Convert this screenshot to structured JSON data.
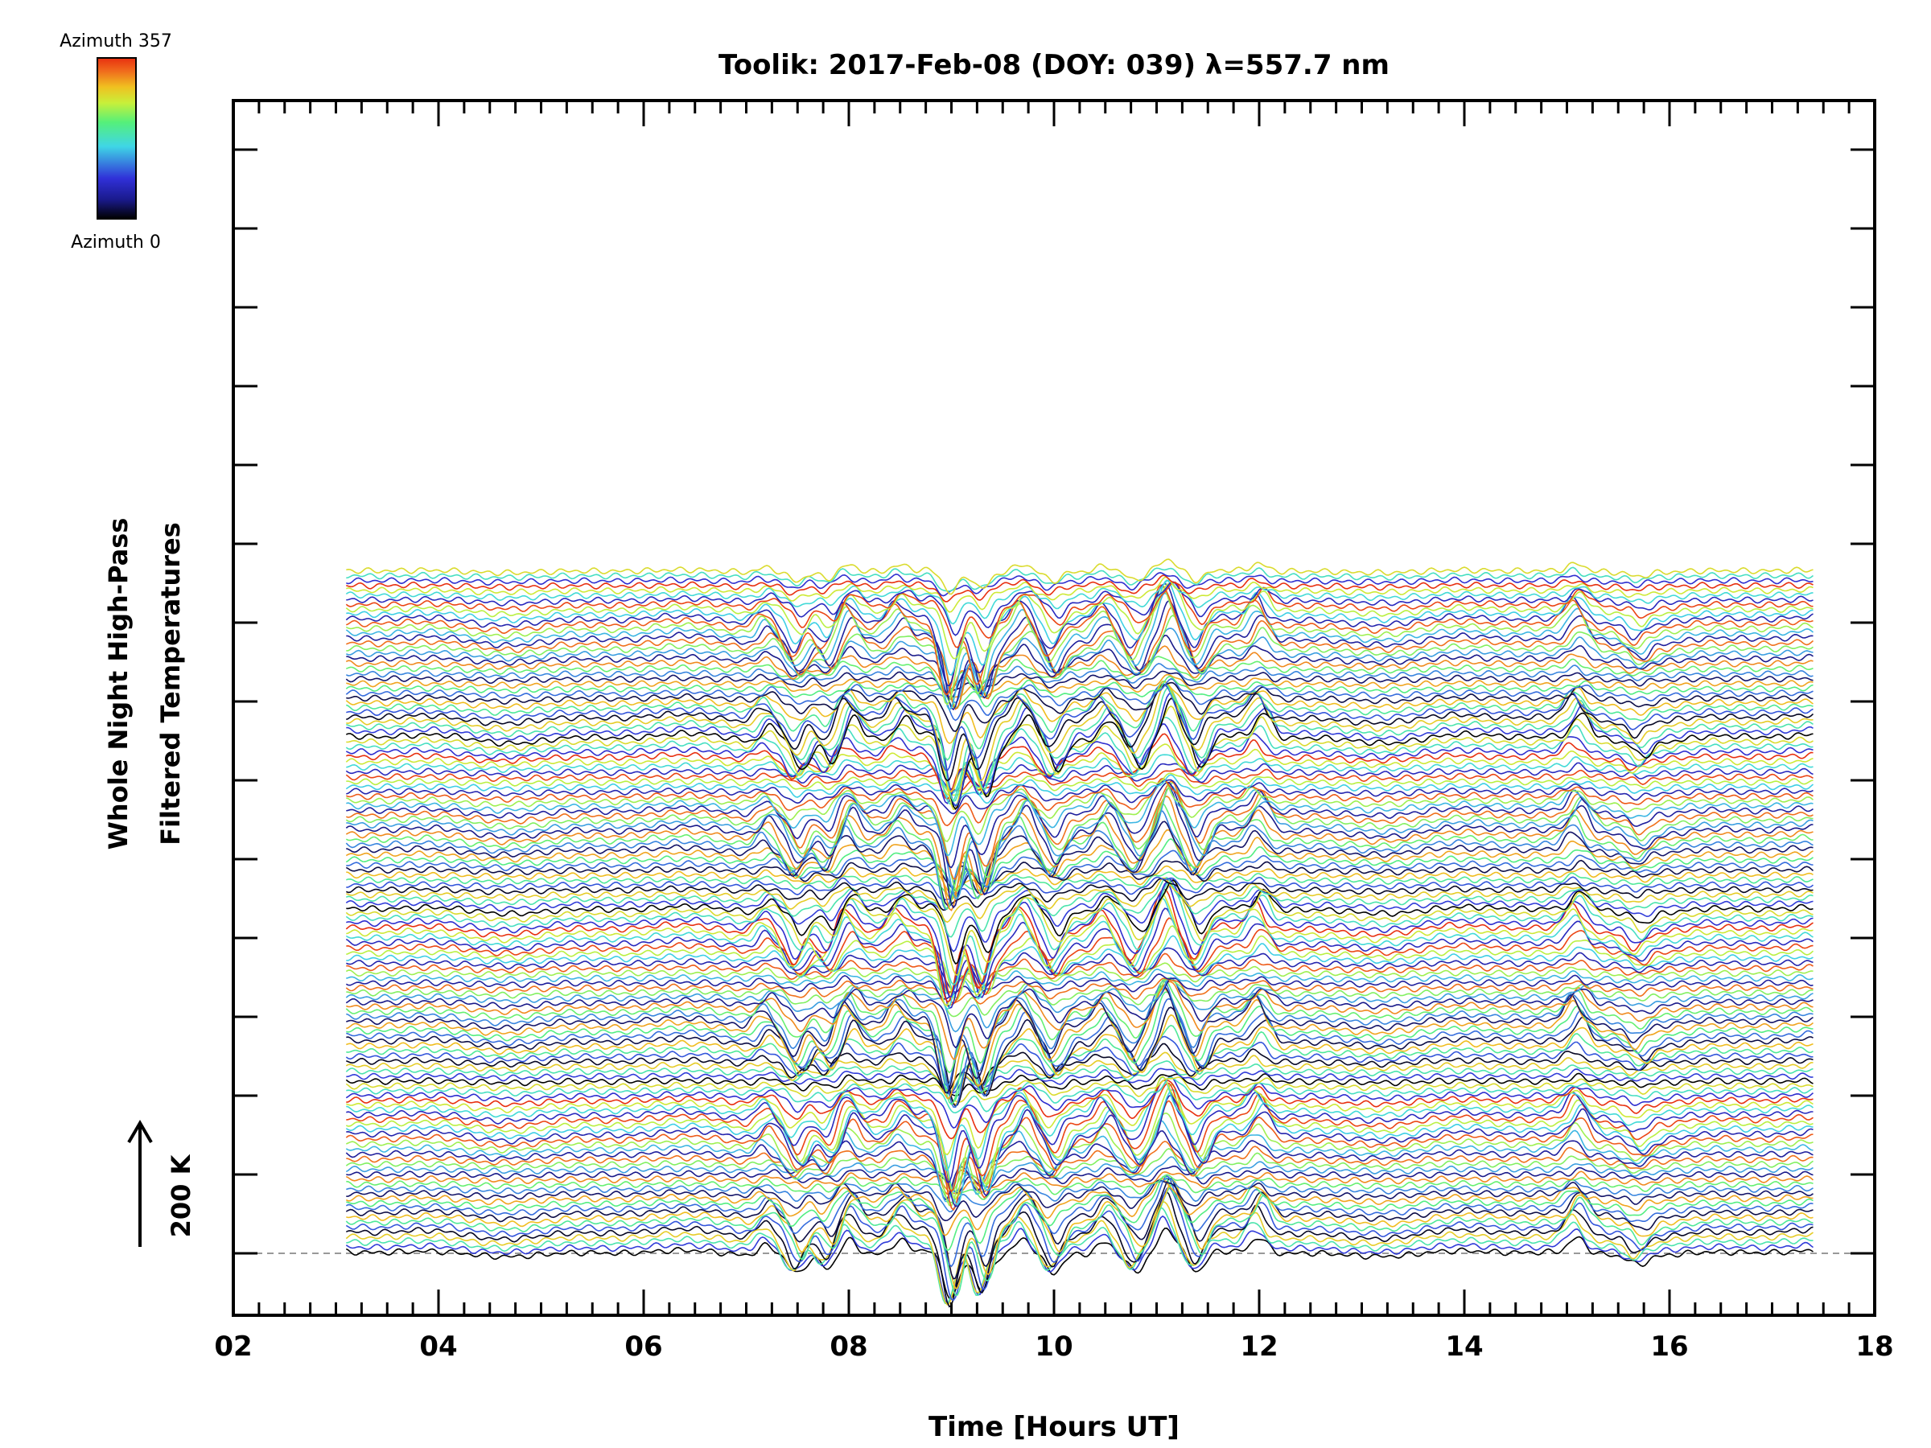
{
  "chart_data": {
    "type": "line",
    "title": "Toolik: 2017-Feb-08 (DOY: 039) λ=557.7 nm",
    "xlabel": "Time [Hours UT]",
    "ylabel_line1": "Whole Night High-Pass",
    "ylabel_line2": "Filtered Temperatures",
    "scale_label": "200 K",
    "x_ticks": [
      "02",
      "04",
      "06",
      "08",
      "10",
      "12",
      "14",
      "16",
      "18"
    ],
    "xlim": [
      2,
      18
    ],
    "time_range": [
      3.1,
      17.4
    ],
    "grid": false,
    "legend": {
      "type": "colorbar",
      "placement": "top-left",
      "top_label": "Azimuth 357",
      "bottom_label": "Azimuth 0",
      "colormap": [
        "#000000",
        "#1a1a8c",
        "#3030d8",
        "#3fd6e6",
        "#55f07a",
        "#c8f03a",
        "#f0c020",
        "#f06a1c",
        "#e83010"
      ]
    },
    "series_count": 140,
    "azimuth_range": [
      0,
      357
    ],
    "features": [
      {
        "time": 7.2,
        "amplitude": 40
      },
      {
        "time": 7.5,
        "amplitude": -70
      },
      {
        "time": 7.8,
        "amplitude": -55
      },
      {
        "time": 8.0,
        "amplitude": 55
      },
      {
        "time": 8.5,
        "amplitude": 45
      },
      {
        "time": 9.0,
        "amplitude": -180
      },
      {
        "time": 9.3,
        "amplitude": -140
      },
      {
        "time": 9.7,
        "amplitude": 60
      },
      {
        "time": 10.0,
        "amplitude": -70
      },
      {
        "time": 10.5,
        "amplitude": 50
      },
      {
        "time": 10.8,
        "amplitude": -60
      },
      {
        "time": 11.1,
        "amplitude": 90
      },
      {
        "time": 11.4,
        "amplitude": -80
      },
      {
        "time": 12.0,
        "amplitude": 60
      },
      {
        "time": 15.1,
        "amplitude": 55
      },
      {
        "time": 15.7,
        "amplitude": -30
      }
    ]
  }
}
